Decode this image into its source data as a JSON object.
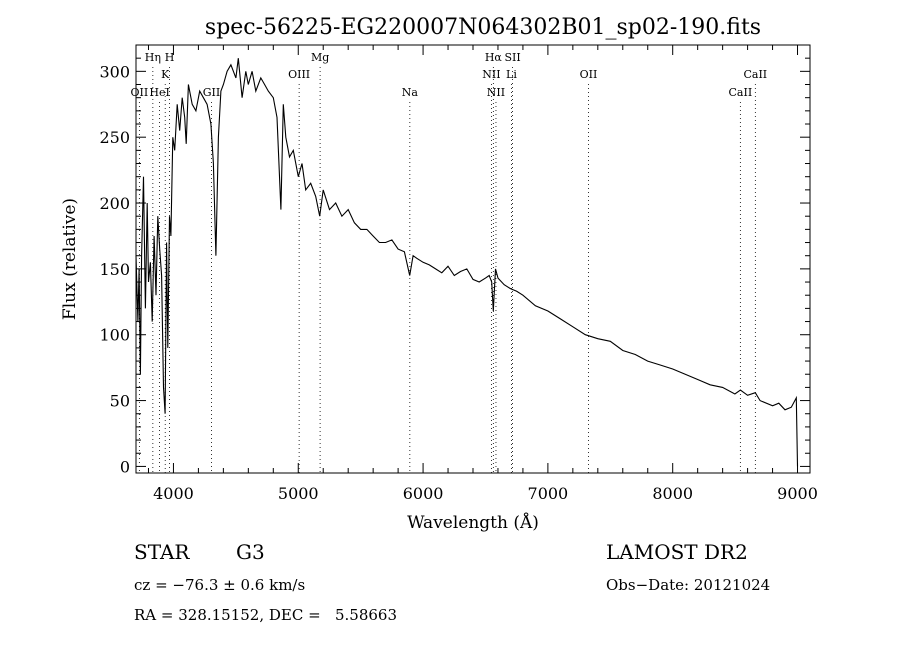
{
  "chart_data": {
    "type": "line",
    "title": "spec-56225-EG220007N064302B01_sp02-190.fits",
    "xlabel": "Wavelength (Å)",
    "ylabel": "Flux (relative)",
    "xlim": [
      3700,
      9100
    ],
    "ylim": [
      -5,
      320
    ],
    "xticks": [
      4000,
      5000,
      6000,
      7000,
      8000,
      9000
    ],
    "yticks": [
      0,
      50,
      100,
      150,
      200,
      250,
      300
    ],
    "grid": false,
    "legend": "none",
    "line_color": "#000000",
    "series": [
      {
        "x": [
          3700,
          3715,
          3725,
          3735,
          3745,
          3760,
          3775,
          3790,
          3800,
          3815,
          3830,
          3845,
          3860,
          3875,
          3890,
          3905,
          3920,
          3933,
          3945,
          3955,
          3968,
          3980,
          3995,
          4010,
          4030,
          4050,
          4070,
          4090,
          4102,
          4120,
          4150,
          4180,
          4210,
          4240,
          4270,
          4300,
          4320,
          4340,
          4360,
          4380,
          4400,
          4430,
          4460,
          4500,
          4520,
          4550,
          4580,
          4600,
          4630,
          4660,
          4700,
          4730,
          4760,
          4800,
          4830,
          4861,
          4880,
          4900,
          4930,
          4960,
          5000,
          5030,
          5060,
          5100,
          5140,
          5172,
          5200,
          5250,
          5300,
          5350,
          5400,
          5450,
          5500,
          5550,
          5600,
          5650,
          5700,
          5750,
          5800,
          5850,
          5893,
          5920,
          5950,
          6000,
          6050,
          6100,
          6150,
          6200,
          6250,
          6300,
          6350,
          6400,
          6450,
          6500,
          6530,
          6550,
          6563,
          6580,
          6600,
          6650,
          6700,
          6750,
          6800,
          6900,
          7000,
          7100,
          7200,
          7300,
          7400,
          7500,
          7600,
          7700,
          7800,
          7900,
          8000,
          8100,
          8200,
          8300,
          8400,
          8498,
          8542,
          8600,
          8662,
          8700,
          8800,
          8850,
          8900,
          8950,
          8990,
          9000
        ],
        "y": [
          160,
          110,
          150,
          70,
          160,
          220,
          120,
          200,
          140,
          155,
          110,
          175,
          130,
          190,
          165,
          145,
          60,
          40,
          170,
          90,
          190,
          175,
          250,
          240,
          275,
          255,
          280,
          265,
          245,
          290,
          275,
          270,
          285,
          280,
          275,
          260,
          230,
          160,
          250,
          285,
          290,
          300,
          305,
          295,
          310,
          280,
          300,
          290,
          300,
          285,
          295,
          290,
          285,
          280,
          265,
          195,
          275,
          250,
          235,
          240,
          220,
          230,
          210,
          215,
          205,
          190,
          210,
          195,
          200,
          190,
          195,
          185,
          180,
          180,
          175,
          170,
          170,
          172,
          165,
          163,
          145,
          160,
          158,
          155,
          153,
          150,
          147,
          152,
          145,
          148,
          150,
          142,
          140,
          143,
          145,
          140,
          118,
          150,
          143,
          138,
          135,
          133,
          130,
          122,
          118,
          112,
          106,
          100,
          97,
          95,
          88,
          85,
          80,
          77,
          74,
          70,
          66,
          62,
          60,
          55,
          58,
          54,
          56,
          50,
          46,
          48,
          43,
          45,
          52,
          0
        ]
      }
    ],
    "line_markers": [
      {
        "label": "OII",
        "x": 3727,
        "row": 3
      },
      {
        "label": "Hη",
        "x": 3835,
        "row": 1
      },
      {
        "label": "HeI",
        "x": 3889,
        "row": 3
      },
      {
        "label": "K",
        "x": 3934,
        "row": 2
      },
      {
        "label": "H",
        "x": 3969,
        "row": 1
      },
      {
        "label": "GII",
        "x": 4305,
        "row": 3
      },
      {
        "label": "OIII",
        "x": 5007,
        "row": 2
      },
      {
        "label": "Mg",
        "x": 5175,
        "row": 1
      },
      {
        "label": "Na",
        "x": 5894,
        "row": 3
      },
      {
        "label": "Hα",
        "x": 6563,
        "row": 1
      },
      {
        "label": "NII",
        "x": 6548,
        "row": 2
      },
      {
        "label": "Li",
        "x": 6708,
        "row": 2
      },
      {
        "label": "NII",
        "x": 6584,
        "row": 3
      },
      {
        "label": "OII",
        "x": 7325,
        "row": 2
      },
      {
        "label": "SII",
        "x": 6717,
        "row": 1
      },
      {
        "label": "CaII",
        "x": 8662,
        "row": 2
      },
      {
        "label": "CaII",
        "x": 8542,
        "row": 3
      }
    ]
  },
  "info": {
    "object_class": "STAR",
    "subclass": "G3",
    "survey": "LAMOST DR2",
    "cz": "cz = −76.3 ± 0.6 km/s",
    "obs_date": "Obs−Date: 20121024",
    "coords": "RA = 328.15152, DEC =   5.58663"
  }
}
